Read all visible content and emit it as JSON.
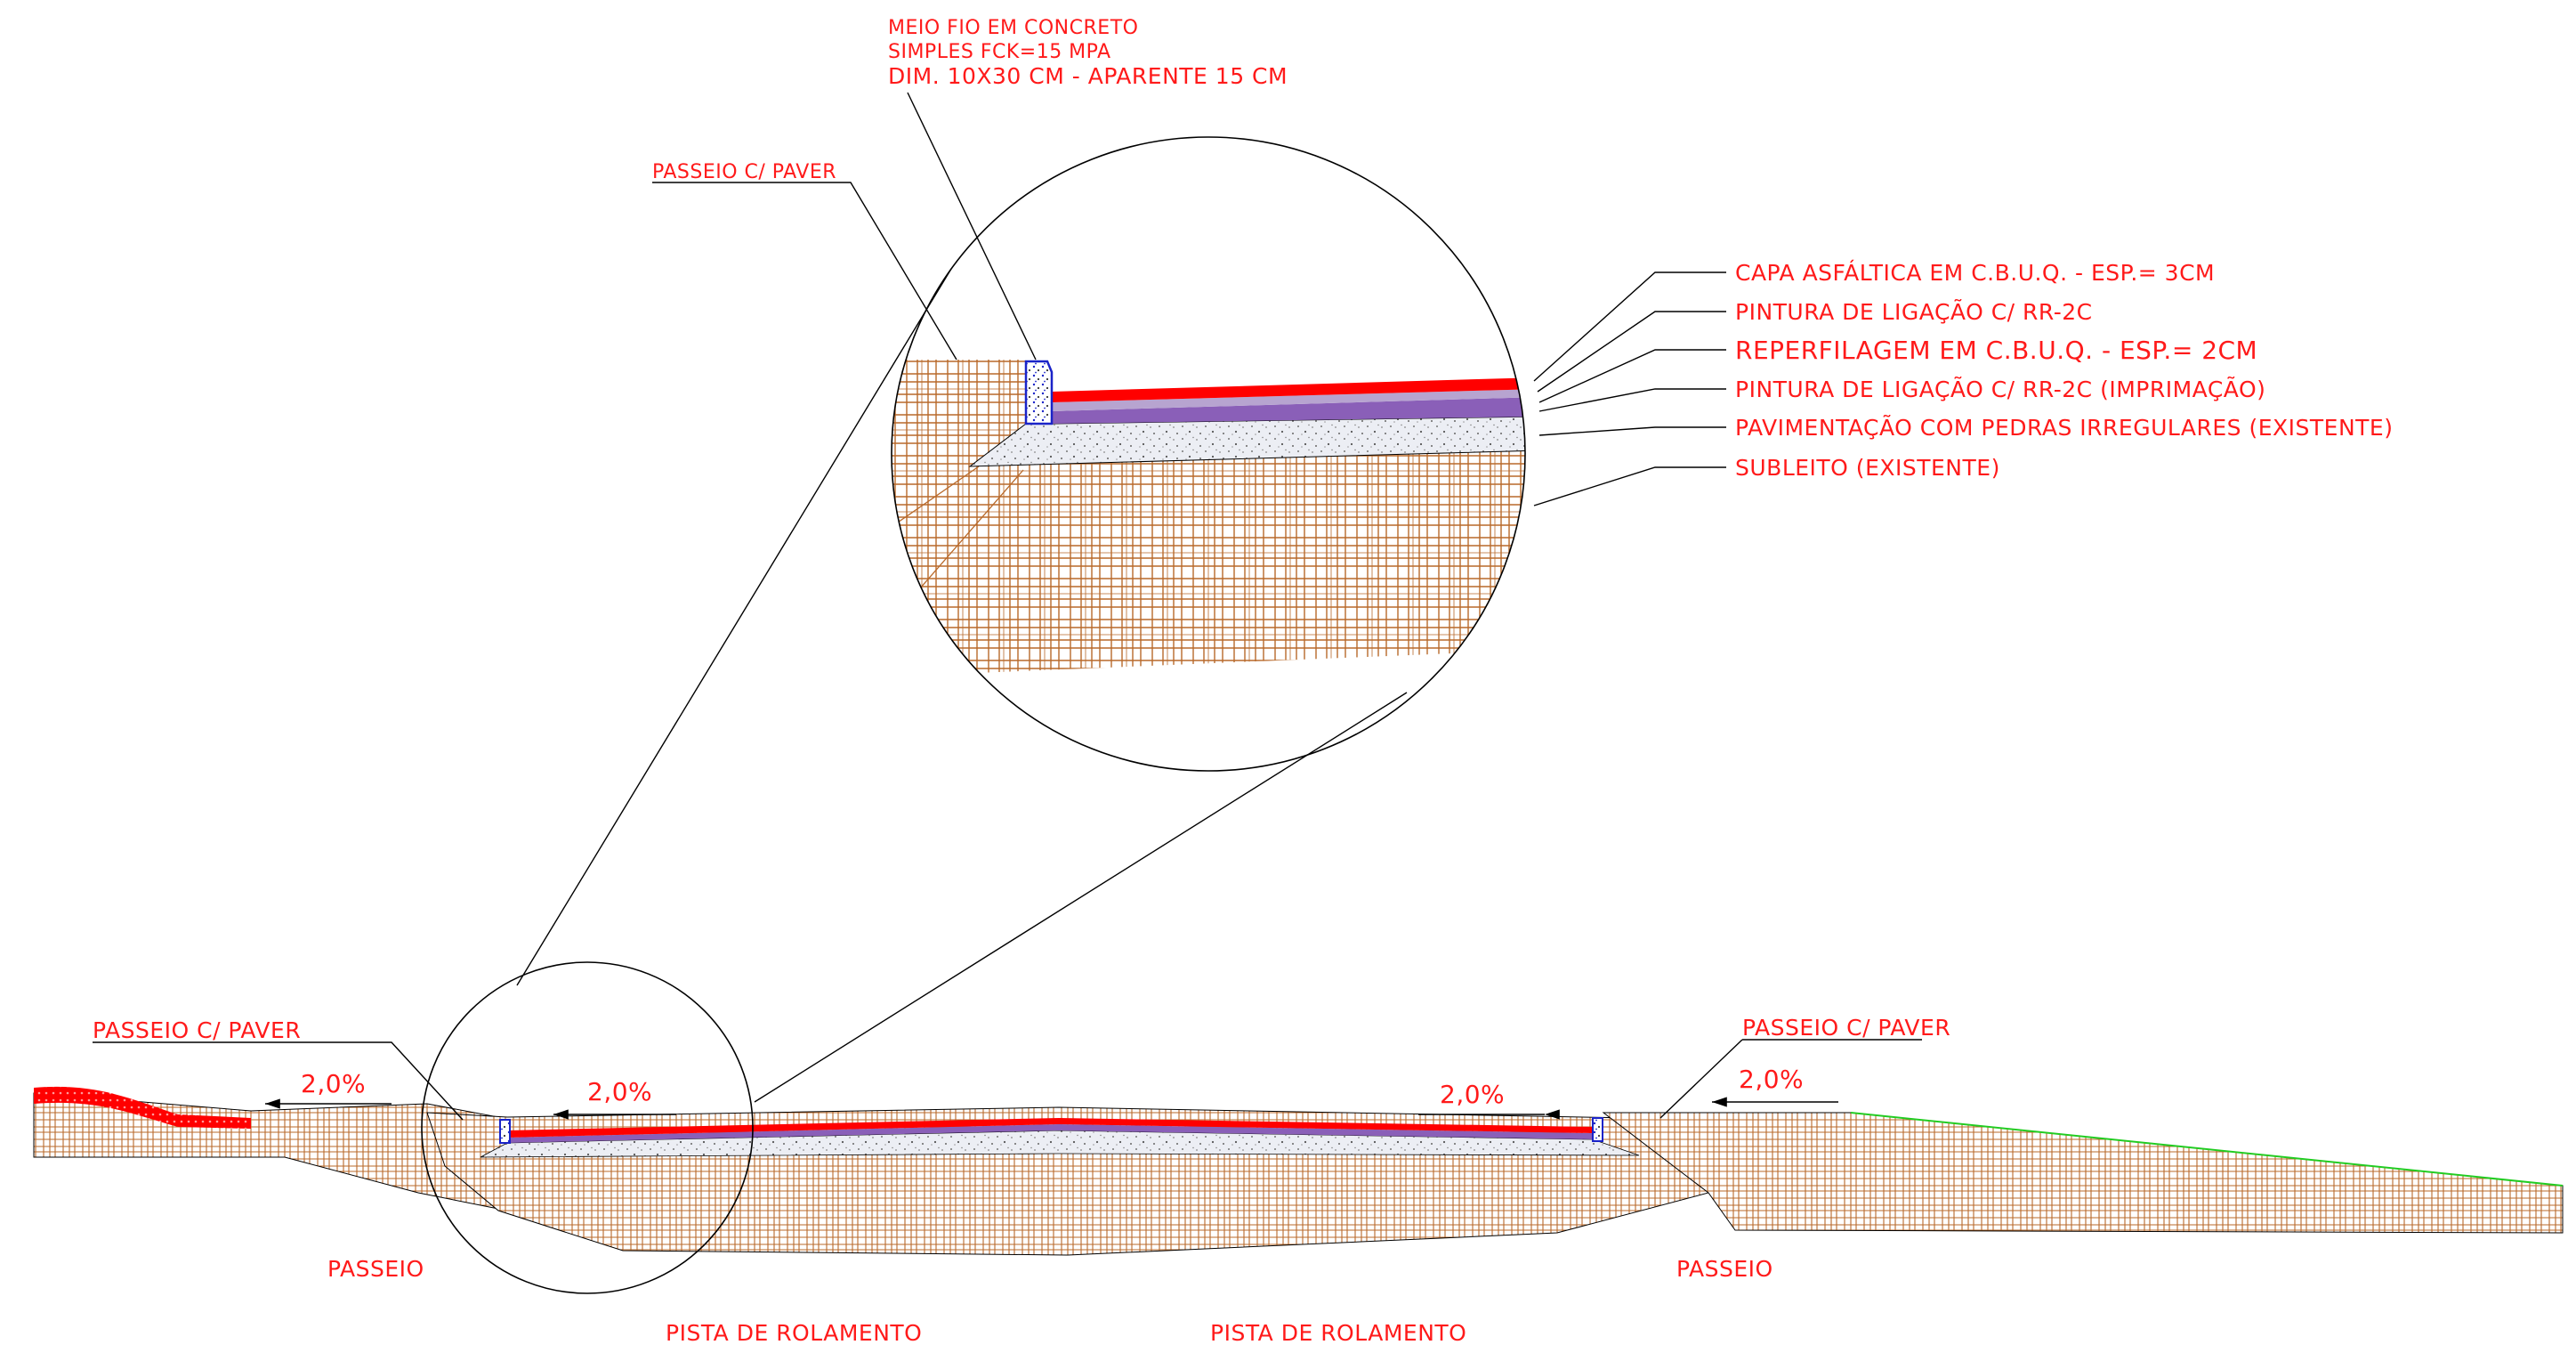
{
  "detail": {
    "curb_note": [
      "MEIO FIO EM CONCRETO",
      "SIMPLES FCK=15 MPA",
      "DIM. 10X30 CM - APARENTE 15 CM"
    ],
    "sidewalk_label": "PASSEIO C/ PAVER",
    "layers": [
      "CAPA ASFÁLTICA EM C.B.U.Q. - ESP.= 3CM",
      "PINTURA DE LIGAÇÃO C/ RR-2C",
      "REPERFILAGEM EM C.B.U.Q. - ESP.= 2CM",
      "PINTURA DE LIGAÇÃO C/ RR-2C (IMPRIMAÇÃO)",
      "PAVIMENTAÇÃO COM PEDRAS IRREGULARES (EXISTENTE)",
      "SUBLEITO (EXISTENTE)"
    ]
  },
  "section": {
    "left_paver_label": "PASSEIO C/ PAVER",
    "right_paver_label": "PASSEIO C/ PAVER",
    "slopes": [
      "2,0%",
      "2,0%",
      "2,0%",
      "2,0%"
    ],
    "left_sidewalk": "PASSEIO",
    "right_sidewalk": "PASSEIO",
    "lane_left": "PISTA DE ROLAMENTO",
    "lane_right": "PISTA DE ROLAMENTO"
  },
  "colors": {
    "asphalt": "#ff0000",
    "tack_coat": "#8a5fb8",
    "stones": "#e6e6ec",
    "subgrade_hatch": "#b8692a",
    "curb": "#1a23c8",
    "labels": "#ff1a1a",
    "terrain_edge": "#22cc22"
  }
}
